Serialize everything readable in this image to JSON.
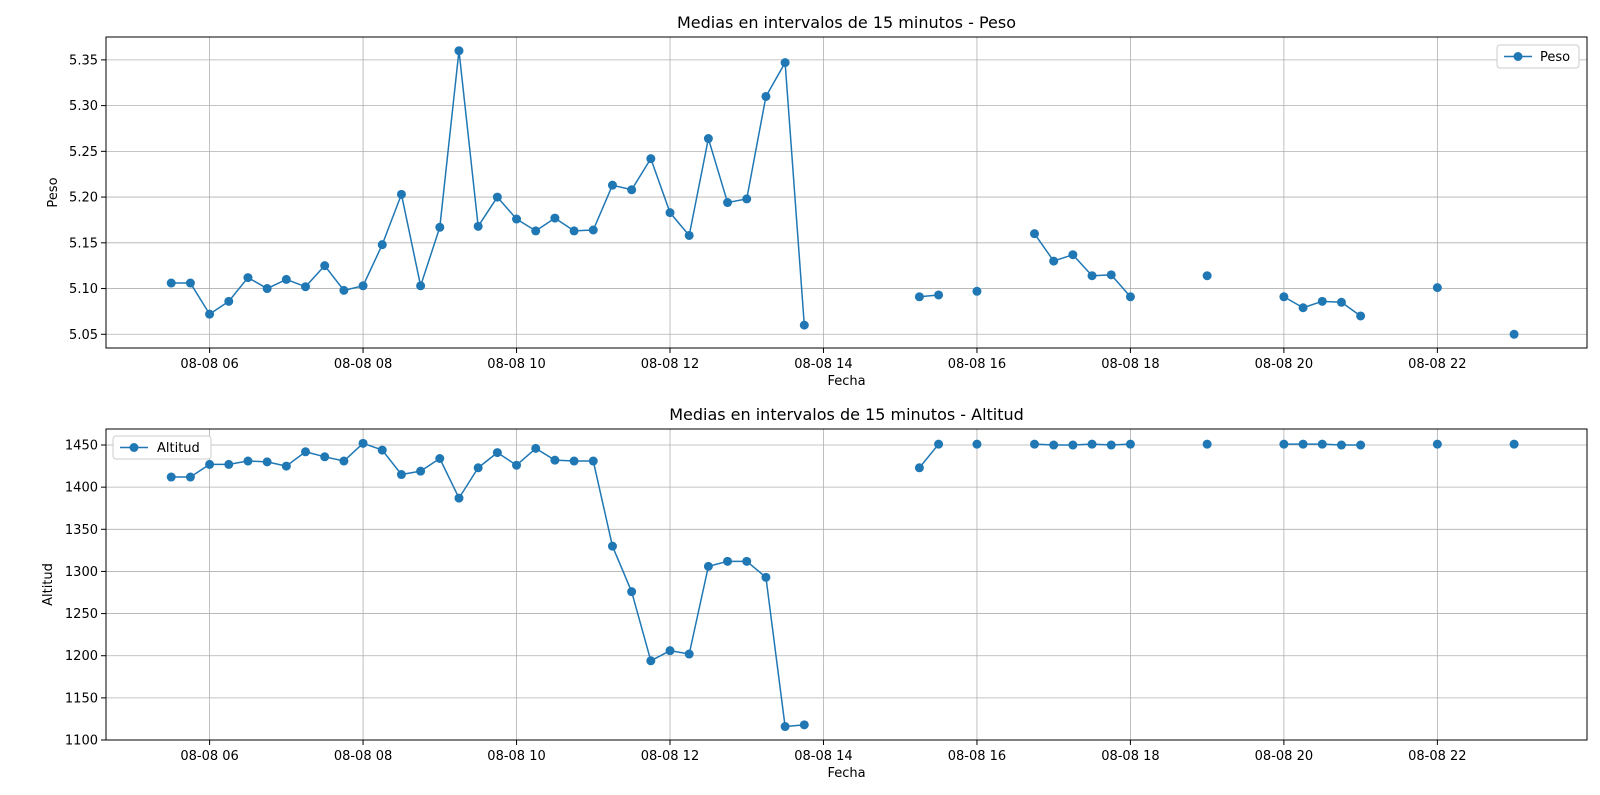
{
  "chart_data": [
    {
      "type": "line",
      "title": "Medias en intervalos de 15 minutos - Peso",
      "xlabel": "Fecha",
      "ylabel": "Peso",
      "x_unit": "hours on 08-08 (decimal)",
      "xlim": [
        4.65,
        23.95
      ],
      "ylim": [
        5.035,
        5.375
      ],
      "x_ticks": [
        6,
        8,
        10,
        12,
        14,
        16,
        18,
        20,
        22
      ],
      "x_tick_labels": [
        "08-08 06",
        "08-08 08",
        "08-08 10",
        "08-08 12",
        "08-08 14",
        "08-08 16",
        "08-08 18",
        "08-08 20",
        "08-08 22"
      ],
      "y_ticks": [
        5.05,
        5.1,
        5.15,
        5.2,
        5.25,
        5.3,
        5.35
      ],
      "y_tick_labels": [
        "5.05",
        "5.10",
        "5.15",
        "5.20",
        "5.25",
        "5.30",
        "5.35"
      ],
      "grid": true,
      "legend_position": "upper right",
      "color": "#1f77b4",
      "series": [
        {
          "name": "Peso",
          "x": [
            5.5,
            5.75,
            6.0,
            6.25,
            6.5,
            6.75,
            7.0,
            7.25,
            7.5,
            7.75,
            8.0,
            8.25,
            8.5,
            8.75,
            9.0,
            9.25,
            9.5,
            9.75,
            10.0,
            10.25,
            10.5,
            10.75,
            11.0,
            11.25,
            11.5,
            11.75,
            12.0,
            12.25,
            12.5,
            12.75,
            13.0,
            13.25,
            13.5,
            13.75,
            15.25,
            15.5,
            16.0,
            16.75,
            17.0,
            17.25,
            17.5,
            17.75,
            18.0,
            19.0,
            20.0,
            20.25,
            20.5,
            20.75,
            21.0,
            22.0,
            23.0
          ],
          "y": [
            5.106,
            5.106,
            5.072,
            5.086,
            5.112,
            5.1,
            5.11,
            5.102,
            5.125,
            5.098,
            5.103,
            5.148,
            5.203,
            5.103,
            5.167,
            5.36,
            5.168,
            5.2,
            5.176,
            5.163,
            5.177,
            5.163,
            5.164,
            5.213,
            5.208,
            5.242,
            5.183,
            5.158,
            5.264,
            5.194,
            5.198,
            5.31,
            5.347,
            5.06,
            5.091,
            5.093,
            5.097,
            5.16,
            5.13,
            5.137,
            5.114,
            5.115,
            5.091,
            5.114,
            5.091,
            5.079,
            5.086,
            5.085,
            5.07,
            5.101,
            5.05
          ]
        }
      ]
    },
    {
      "type": "line",
      "title": "Medias en intervalos de 15 minutos - Altitud",
      "xlabel": "Fecha",
      "ylabel": "Altitud",
      "x_unit": "hours on 08-08 (decimal)",
      "xlim": [
        4.65,
        23.95
      ],
      "ylim": [
        1100,
        1469
      ],
      "x_ticks": [
        6,
        8,
        10,
        12,
        14,
        16,
        18,
        20,
        22
      ],
      "x_tick_labels": [
        "08-08 06",
        "08-08 08",
        "08-08 10",
        "08-08 12",
        "08-08 14",
        "08-08 16",
        "08-08 18",
        "08-08 20",
        "08-08 22"
      ],
      "y_ticks": [
        1100,
        1150,
        1200,
        1250,
        1300,
        1350,
        1400,
        1450
      ],
      "y_tick_labels": [
        "1100",
        "1150",
        "1200",
        "1250",
        "1300",
        "1350",
        "1400",
        "1450"
      ],
      "grid": true,
      "legend_position": "upper left",
      "color": "#1f77b4",
      "series": [
        {
          "name": "Altitud",
          "x": [
            5.5,
            5.75,
            6.0,
            6.25,
            6.5,
            6.75,
            7.0,
            7.25,
            7.5,
            7.75,
            8.0,
            8.25,
            8.5,
            8.75,
            9.0,
            9.25,
            9.5,
            9.75,
            10.0,
            10.25,
            10.5,
            10.75,
            11.0,
            11.25,
            11.5,
            11.75,
            12.0,
            12.25,
            12.5,
            12.75,
            13.0,
            13.25,
            13.5,
            13.75,
            15.25,
            15.5,
            16.0,
            16.75,
            17.0,
            17.25,
            17.5,
            17.75,
            18.0,
            19.0,
            20.0,
            20.25,
            20.5,
            20.75,
            21.0,
            22.0,
            23.0
          ],
          "y": [
            1412,
            1412,
            1427,
            1427,
            1431,
            1430,
            1425,
            1442,
            1436,
            1431,
            1452,
            1444,
            1415,
            1419,
            1434,
            1387,
            1423,
            1441,
            1426,
            1446,
            1432,
            1431,
            1431,
            1330,
            1276,
            1194,
            1206,
            1202,
            1306,
            1312,
            1312,
            1293,
            1116,
            1118,
            1423,
            1451,
            1451,
            1451,
            1450,
            1450,
            1451,
            1450,
            1451,
            1451,
            1451,
            1451,
            1451,
            1450,
            1450,
            1451,
            1451
          ]
        }
      ]
    }
  ]
}
